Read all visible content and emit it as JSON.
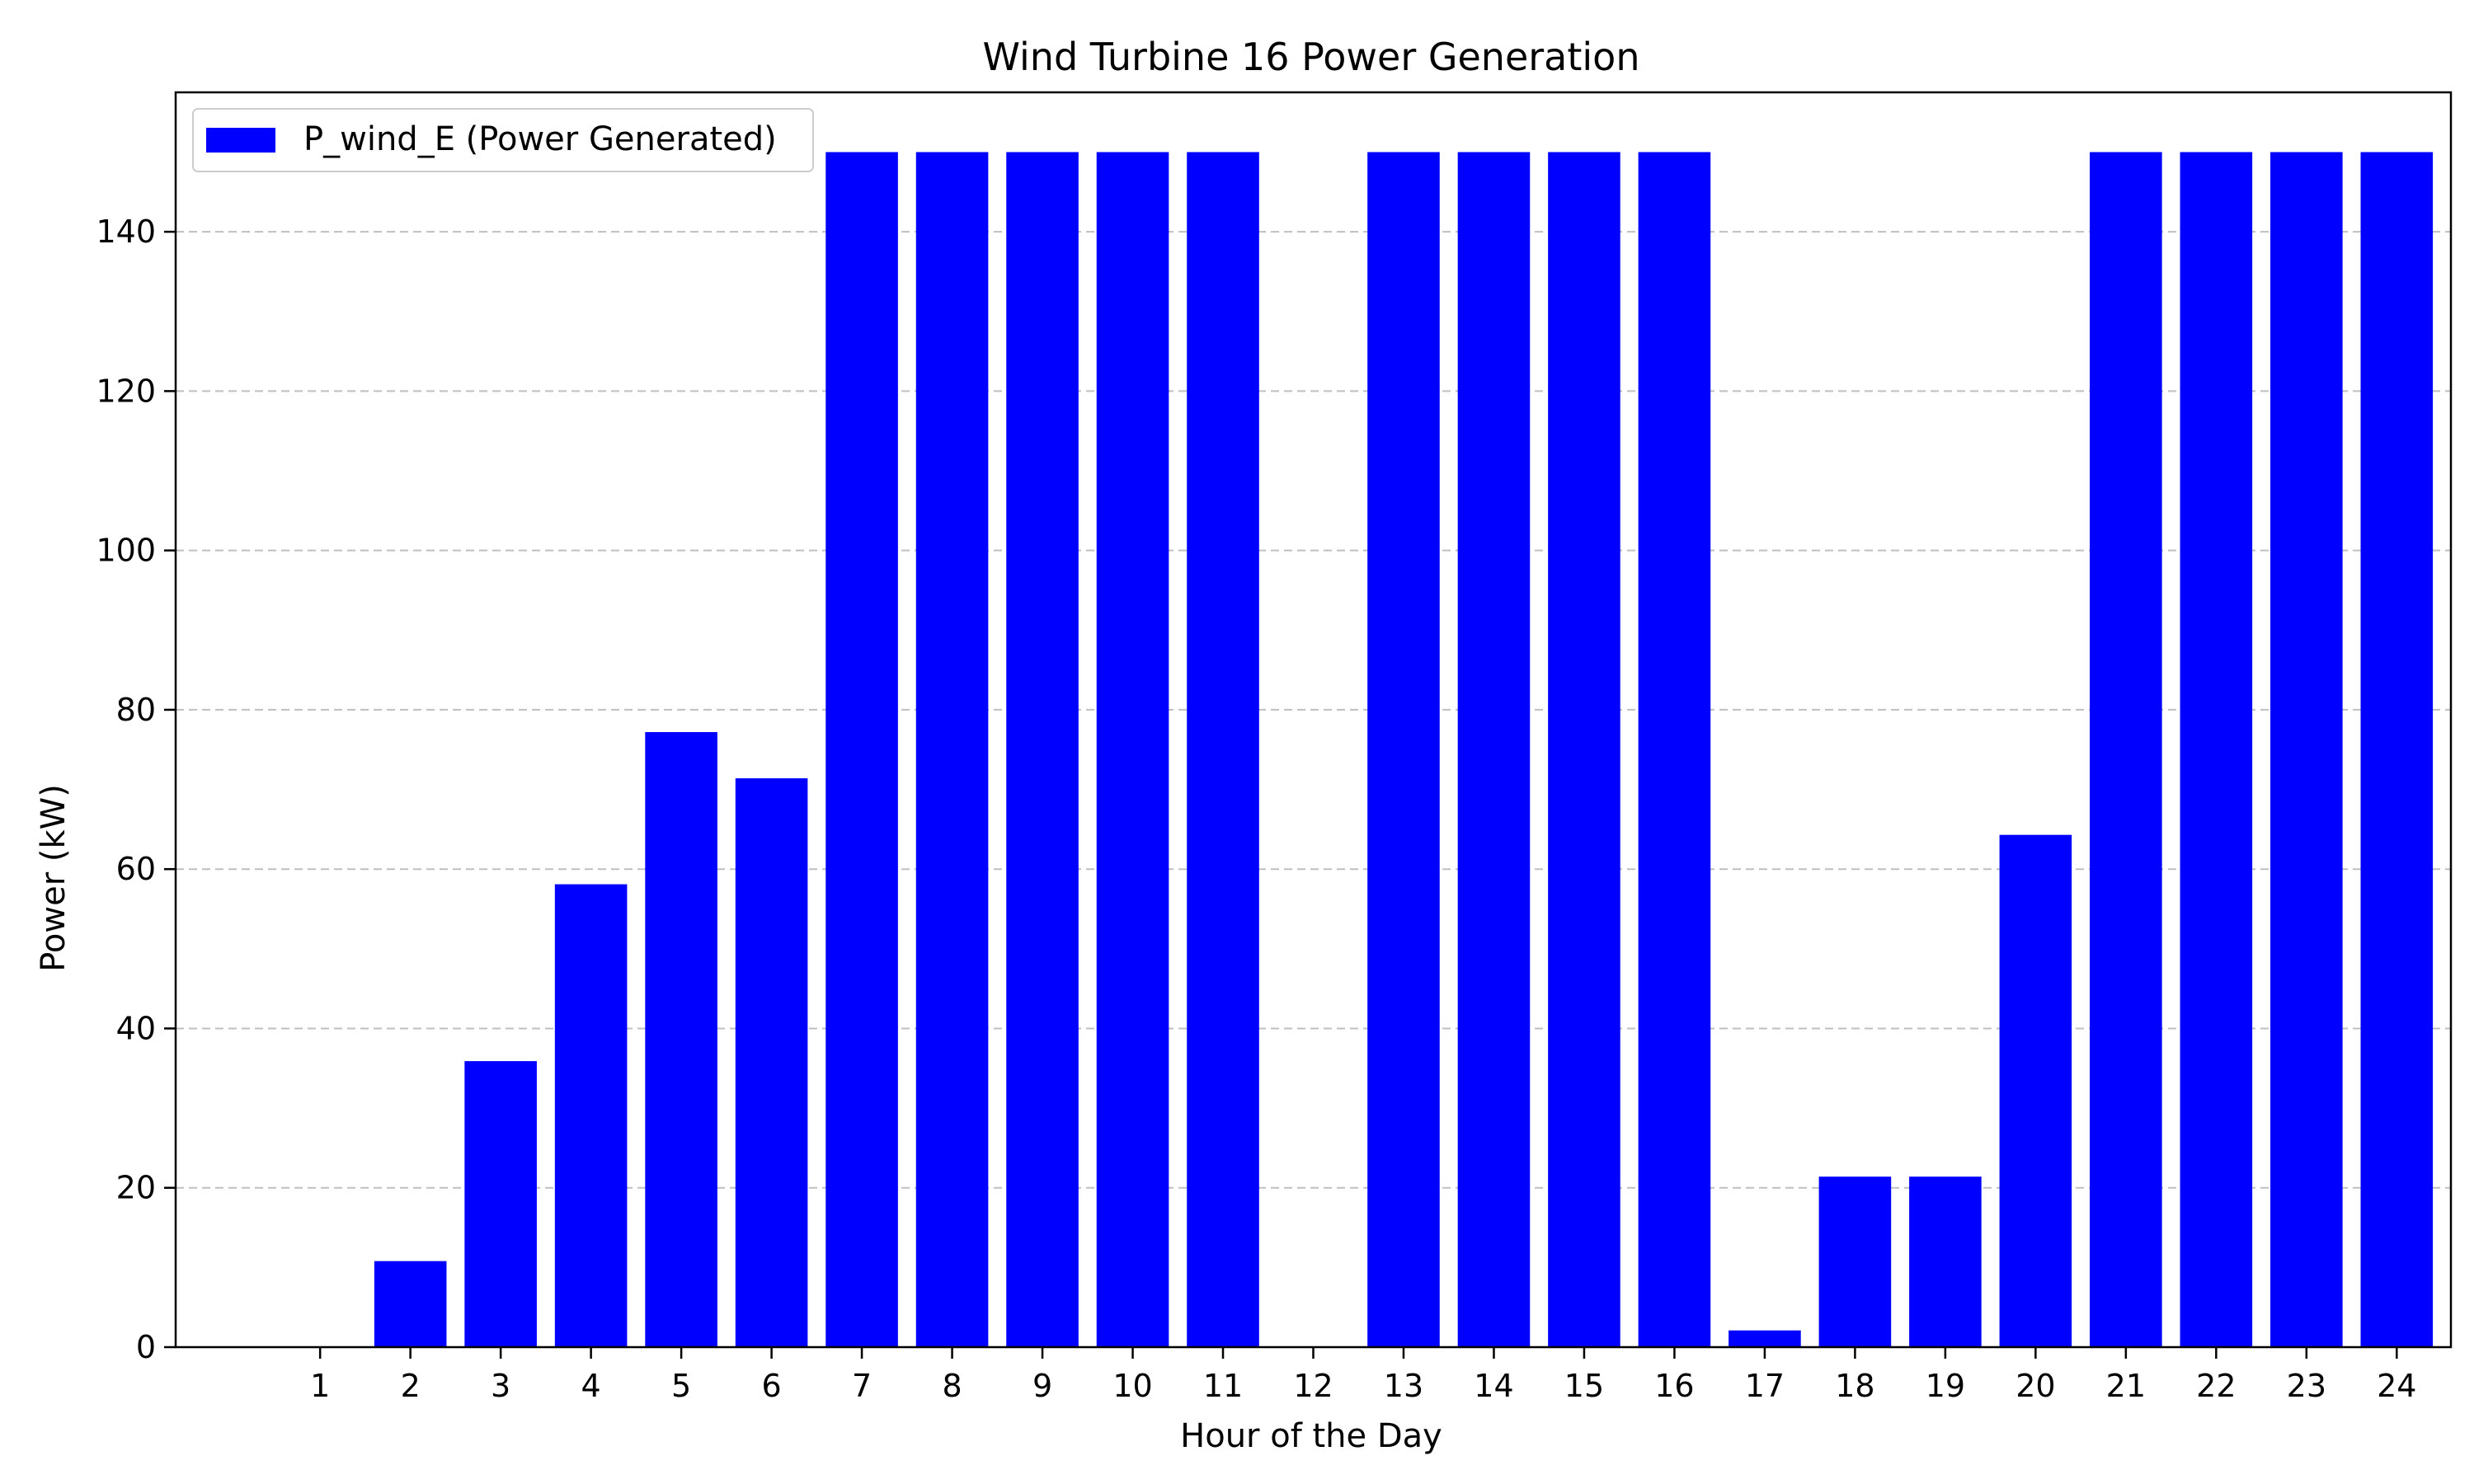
{
  "chart_data": {
    "type": "bar",
    "title": "Wind Turbine 16 Power Generation",
    "xlabel": "Hour of the Day",
    "ylabel": "Power (kW)",
    "categories": [
      "1",
      "2",
      "3",
      "4",
      "5",
      "6",
      "7",
      "8",
      "9",
      "10",
      "11",
      "12",
      "13",
      "14",
      "15",
      "16",
      "17",
      "18",
      "19",
      "20",
      "21",
      "22",
      "23",
      "24"
    ],
    "series": [
      {
        "name": "P_wind_E (Power Generated)",
        "color": "#0000ff",
        "values": [
          0,
          10.8,
          35.9,
          58.1,
          77.2,
          71.4,
          150,
          150,
          150,
          150,
          150,
          0,
          150,
          150,
          150,
          150,
          2.1,
          21.4,
          21.4,
          64.3,
          150,
          150,
          150,
          150
        ]
      }
    ],
    "ylim": [
      0,
      157.5
    ],
    "yticks": [
      0,
      20,
      40,
      60,
      80,
      100,
      120,
      140
    ],
    "grid": "y-dashed",
    "legend": "upper-left"
  }
}
